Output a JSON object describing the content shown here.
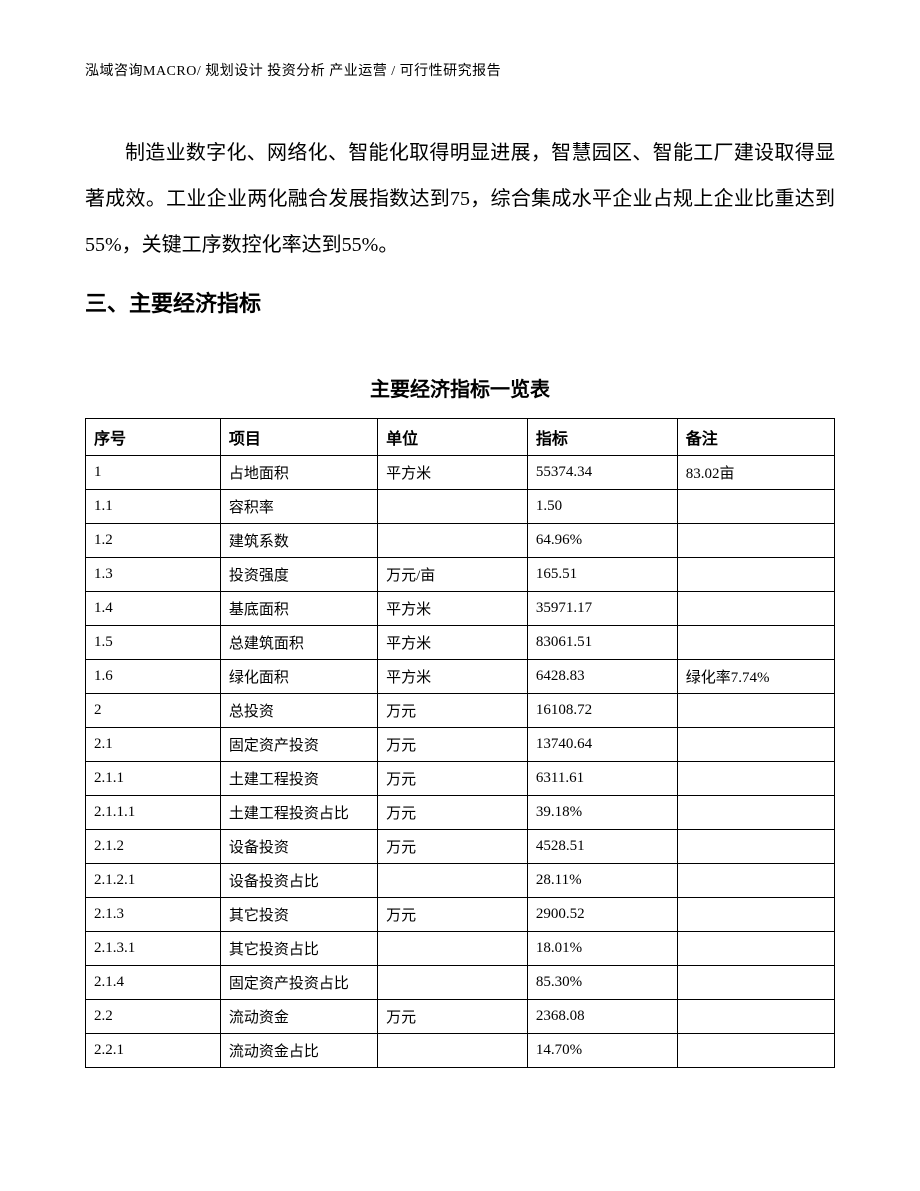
{
  "header": "泓域咨询MACRO/ 规划设计  投资分析  产业运营 / 可行性研究报告",
  "paragraph": "制造业数字化、网络化、智能化取得明显进展，智慧园区、智能工厂建设取得显著成效。工业企业两化融合发展指数达到75，综合集成水平企业占规上企业比重达到55%，关键工序数控化率达到55%。",
  "section_heading": "三、主要经济指标",
  "table_title": "主要经济指标一览表",
  "table": {
    "columns": [
      "序号",
      "项目",
      "单位",
      "指标",
      "备注"
    ],
    "col_widths_pct": [
      18,
      21,
      20,
      20,
      21
    ],
    "border_color": "#000000",
    "background_color": "#ffffff",
    "header_font_family": "SimHei",
    "body_font_family": "SimSun",
    "header_fontsize": 16,
    "body_fontsize": 15,
    "cell_padding": "6px 8px",
    "text_align": "left",
    "rows": [
      [
        "1",
        "占地面积",
        "平方米",
        "55374.34",
        "83.02亩"
      ],
      [
        "1.1",
        "容积率",
        "",
        "1.50",
        ""
      ],
      [
        "1.2",
        "建筑系数",
        "",
        "64.96%",
        ""
      ],
      [
        "1.3",
        "投资强度",
        "万元/亩",
        "165.51",
        ""
      ],
      [
        "1.4",
        "基底面积",
        "平方米",
        "35971.17",
        ""
      ],
      [
        "1.5",
        "总建筑面积",
        "平方米",
        "83061.51",
        ""
      ],
      [
        "1.6",
        "绿化面积",
        "平方米",
        "6428.83",
        "绿化率7.74%"
      ],
      [
        "2",
        "总投资",
        "万元",
        "16108.72",
        ""
      ],
      [
        "2.1",
        "固定资产投资",
        "万元",
        "13740.64",
        ""
      ],
      [
        "2.1.1",
        "土建工程投资",
        "万元",
        "6311.61",
        ""
      ],
      [
        "2.1.1.1",
        "土建工程投资占比",
        "万元",
        "39.18%",
        ""
      ],
      [
        "2.1.2",
        "设备投资",
        "万元",
        "4528.51",
        ""
      ],
      [
        "2.1.2.1",
        "设备投资占比",
        "",
        "28.11%",
        ""
      ],
      [
        "2.1.3",
        "其它投资",
        "万元",
        "2900.52",
        ""
      ],
      [
        "2.1.3.1",
        "其它投资占比",
        "",
        "18.01%",
        ""
      ],
      [
        "2.1.4",
        "固定资产投资占比",
        "",
        "85.30%",
        ""
      ],
      [
        "2.2",
        "流动资金",
        "万元",
        "2368.08",
        ""
      ],
      [
        "2.2.1",
        "流动资金占比",
        "",
        "14.70%",
        ""
      ]
    ]
  }
}
